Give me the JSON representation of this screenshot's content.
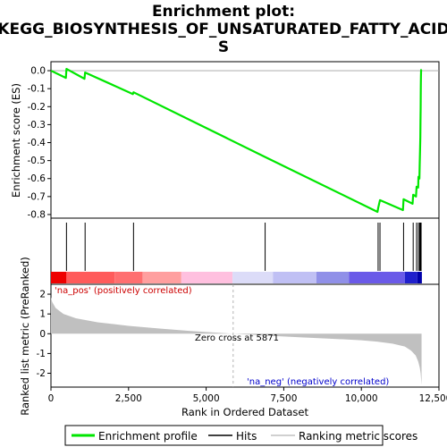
{
  "title_line1": "Enrichment plot:",
  "title_line2": "KEGG_BIOSYNTHESIS_OF_UNSATURATED_FATTY_ACID",
  "title_line3": "S",
  "colors": {
    "es_line": "#00e600",
    "hits": "#000000",
    "metric_fill": "#c0c0c0",
    "pos_label": "#cc0000",
    "neg_label": "#0000cc",
    "zero_line": "#a0a0a0"
  },
  "annotations": {
    "pos_label": "'na_pos' (positively correlated)",
    "neg_label": "'na_neg' (negatively correlated)",
    "zero_cross": "Zero cross at 5871"
  },
  "legend": {
    "entries": [
      "Enrichment profile",
      "Hits",
      "Ranking metric scores"
    ]
  },
  "chart_data": [
    {
      "type": "line",
      "panel": "enrichment",
      "ylabel": "Enrichment score (ES)",
      "xlim": [
        0,
        12500
      ],
      "ylim": [
        -0.82,
        0.05
      ],
      "yticks": [
        0.0,
        -0.1,
        -0.2,
        -0.3,
        -0.4,
        -0.5,
        -0.6,
        -0.7,
        -0.8
      ],
      "ytick_labels": [
        "0.0",
        "-0.1",
        "-0.2",
        "-0.3",
        "-0.4",
        "-0.5",
        "-0.6",
        "-0.7",
        "-0.8"
      ],
      "grid": false,
      "zero_line": true,
      "series": [
        {
          "x": [
            0,
            480,
            500,
            1080,
            1100,
            2640,
            2660,
            6900,
            10520,
            10540,
            10600,
            11340,
            11360,
            11650,
            11670,
            11760,
            11780,
            11830,
            11840,
            11870,
            11880,
            11890,
            11900,
            11905,
            11910,
            11913,
            11916,
            11920,
            11925,
            11930,
            11940
          ],
          "y": [
            0.0,
            -0.04,
            0.01,
            -0.045,
            -0.01,
            -0.13,
            -0.12,
            -0.48,
            -0.785,
            -0.765,
            -0.72,
            -0.775,
            -0.715,
            -0.74,
            -0.69,
            -0.7,
            -0.645,
            -0.65,
            -0.59,
            -0.6,
            -0.52,
            -0.45,
            -0.37,
            -0.28,
            -0.21,
            -0.14,
            -0.08,
            -0.03,
            0.0,
            0.005,
            0.005
          ]
        }
      ],
      "hits": [
        500,
        1100,
        2660,
        6900,
        10540,
        10600,
        11360,
        11670,
        11780,
        11840,
        11880,
        11900,
        11910,
        11916,
        11925
      ]
    },
    {
      "type": "heatmap",
      "panel": "rank-colorbar",
      "xlim": [
        0,
        12500
      ],
      "segments": [
        {
          "to": 500,
          "color": "#ee0000"
        },
        {
          "to": 2050,
          "color": "#ff5b5b"
        },
        {
          "to": 2950,
          "color": "#ff6f70"
        },
        {
          "to": 4200,
          "color": "#ff9f9f"
        },
        {
          "to": 5850,
          "color": "#ffc0df"
        },
        {
          "to": 7150,
          "color": "#dcdcf8"
        },
        {
          "to": 8550,
          "color": "#c0c0f4"
        },
        {
          "to": 9600,
          "color": "#9090e8"
        },
        {
          "to": 11400,
          "color": "#6a5ae8"
        },
        {
          "to": 11800,
          "color": "#2020cc"
        },
        {
          "to": 11950,
          "color": "#0000aa"
        }
      ]
    },
    {
      "type": "area",
      "panel": "ranked-metric",
      "xlabel": "Rank in Ordered Dataset",
      "ylabel": "Ranked list metric (PreRanked)",
      "xlim": [
        0,
        12500
      ],
      "ylim": [
        -2.7,
        2.5
      ],
      "xticks": [
        0,
        2500,
        5000,
        7500,
        10000,
        12500
      ],
      "xtick_labels": [
        "0",
        "2,500",
        "5,000",
        "7,500",
        "10,000",
        "12,500"
      ],
      "yticks": [
        2,
        1,
        0,
        -1,
        -2
      ],
      "ytick_labels": [
        "2",
        "1",
        "0",
        "-1",
        "-2"
      ],
      "zero_cross": 5871,
      "x": [
        0,
        40,
        150,
        400,
        800,
        1500,
        2500,
        3500,
        4500,
        5871,
        7000,
        8000,
        9000,
        10000,
        10500,
        11000,
        11400,
        11600,
        11750,
        11830,
        11880,
        11910,
        11930,
        11940
      ],
      "y": [
        1.85,
        1.6,
        1.3,
        1.0,
        0.78,
        0.58,
        0.4,
        0.26,
        0.14,
        0.0,
        -0.1,
        -0.18,
        -0.25,
        -0.33,
        -0.4,
        -0.5,
        -0.65,
        -0.85,
        -1.1,
        -1.4,
        -1.7,
        -2.0,
        -2.4,
        -2.6
      ]
    }
  ]
}
